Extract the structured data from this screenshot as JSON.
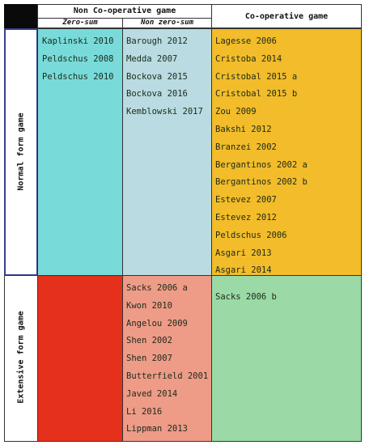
{
  "headers": {
    "non_cooperative": "Non Co-operative game",
    "cooperative": "Co-operative game",
    "zero_sum": "Zero-sum",
    "non_zero_sum": "Non zero-sum"
  },
  "rows": {
    "normal": "Normal form game",
    "extensive": "Extensive form game"
  },
  "cells": {
    "normal_zero_sum": [
      "Kaplinski 2010",
      "Peldschus 2008",
      "Peldschus 2010"
    ],
    "normal_non_zero_sum": [
      "Barough 2012",
      "Medda 2007",
      "Bockova 2015",
      "Bockova 2016",
      "Kemblowski 2017"
    ],
    "normal_cooperative": [
      "Lagesse 2006",
      "Cristoba 2014",
      "Cristobal 2015 a",
      "Cristobal 2015 b",
      "Zou 2009",
      "Bakshi 2012",
      "Branzei 2002",
      "Bergantinos 2002 a",
      "Bergantinos 2002 b",
      "Estevez 2007",
      "Estevez 2012",
      "Peldschus 2006",
      "Asgari 2013",
      "Asgari 2014"
    ],
    "extensive_zero_sum": [],
    "extensive_non_zero_sum": [
      "Sacks 2006 a",
      "Kwon 2010",
      "Angelou 2009",
      "Shen 2002",
      "Shen 2007",
      "Butterfield 2001",
      "Javed 2014",
      "Li 2016",
      "Lippman 2013"
    ],
    "extensive_cooperative": [
      "Sacks 2006 b"
    ]
  },
  "colors": {
    "corner": "#0a0a0a",
    "normal_zero_sum": "#78dbd9",
    "normal_non_zero_sum": "#b9dbe1",
    "normal_cooperative": "#f2bc2a",
    "extensive_zero_sum": "#e5301b",
    "extensive_non_zero_sum": "#ee9b87",
    "extensive_cooperative": "#9bd9a6",
    "normal_row_border": "#3a3f8f"
  }
}
